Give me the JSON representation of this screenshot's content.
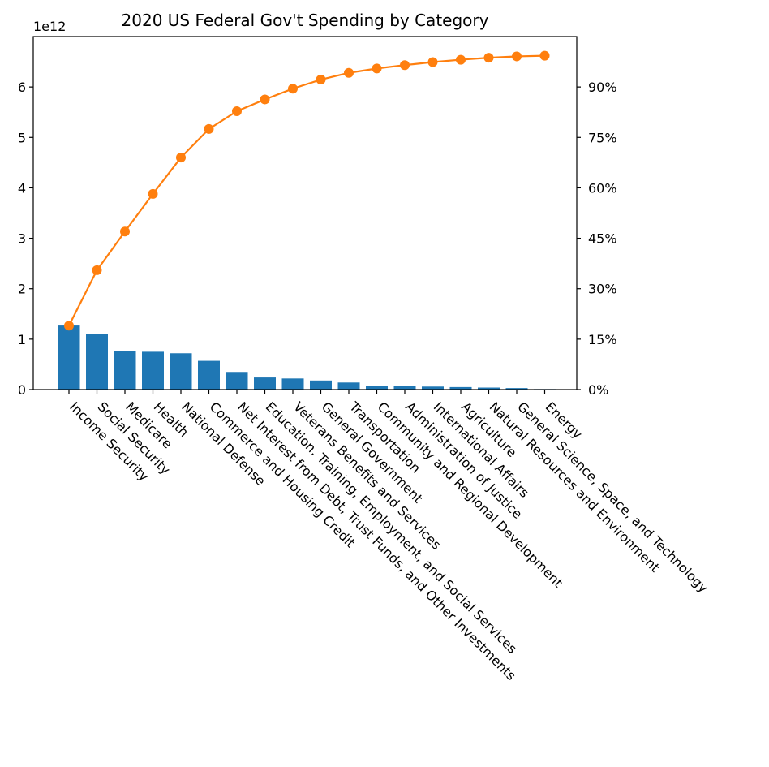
{
  "chart_data": {
    "type": "bar",
    "title": "2020 US Federal Gov't Spending by Category",
    "y_offset_label": "1e12",
    "categories": [
      "Income Security",
      "Social Security",
      "Medicare",
      "Health",
      "National Defense",
      "Commerce and Housing Credit",
      "Net Interest from Debt, Trust Funds, and Other Investments",
      "Education, Training, Employment, and Social Services",
      "Veterans Benefits and Services",
      "General Government",
      "Transportation",
      "Community and Regional Development",
      "Administration of Justice",
      "International Affairs",
      "Agriculture",
      "Natural Resources and Environment",
      "General Science, Space, and Technology",
      "Energy"
    ],
    "left_axis": {
      "ylim": [
        0,
        7.0
      ],
      "ticks": [
        0,
        1,
        2,
        3,
        4,
        5,
        6
      ],
      "tick_labels": [
        "0",
        "1",
        "2",
        "3",
        "4",
        "5",
        "6"
      ]
    },
    "right_axis": {
      "ylim": [
        0,
        1.05
      ],
      "ticks": [
        0,
        0.15,
        0.3,
        0.45,
        0.6,
        0.75,
        0.9
      ],
      "tick_labels": [
        "0%",
        "15%",
        "30%",
        "45%",
        "60%",
        "75%",
        "90%"
      ]
    },
    "series": [
      {
        "type": "bar",
        "color": "#1f77b4",
        "values": [
          1.27,
          1.1,
          0.77,
          0.75,
          0.72,
          0.57,
          0.35,
          0.24,
          0.22,
          0.18,
          0.14,
          0.08,
          0.07,
          0.06,
          0.05,
          0.04,
          0.03,
          0.01
        ]
      },
      {
        "type": "line",
        "axis": "right",
        "color": "#ff7f0e",
        "marker": "circle",
        "values": [
          0.19,
          0.355,
          0.47,
          0.582,
          0.69,
          0.775,
          0.828,
          0.863,
          0.895,
          0.922,
          0.942,
          0.955,
          0.965,
          0.974,
          0.981,
          0.987,
          0.991,
          0.993
        ]
      }
    ],
    "grid": false,
    "legend": "none"
  }
}
